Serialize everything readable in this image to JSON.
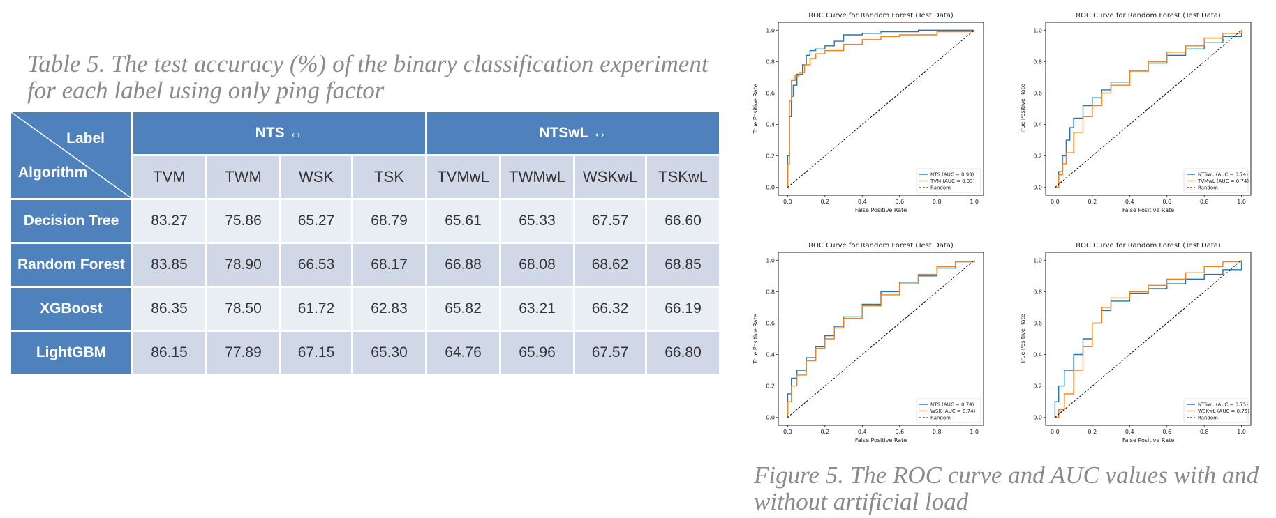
{
  "table": {
    "caption": "Table 5. The test accuracy (%) of the binary classification experiment for each label using only ping factor",
    "corner_label": "Label",
    "corner_algorithm": "Algorithm",
    "groups": [
      "NTS ↔",
      "NTSwL ↔"
    ],
    "columns": [
      "TVM",
      "TWM",
      "WSK",
      "TSK",
      "TVMwL",
      "TWMwL",
      "WSKwL",
      "TSKwL"
    ],
    "rows": [
      {
        "algorithm": "Decision Tree",
        "values": [
          "83.27",
          "75.86",
          "65.27",
          "68.79",
          "65.61",
          "65.33",
          "67.57",
          "66.60"
        ]
      },
      {
        "algorithm": "Random Forest",
        "values": [
          "83.85",
          "78.90",
          "66.53",
          "68.17",
          "66.88",
          "68.08",
          "68.62",
          "68.85"
        ]
      },
      {
        "algorithm": "XGBoost",
        "values": [
          "86.35",
          "78.50",
          "61.72",
          "62.83",
          "65.82",
          "63.21",
          "66.32",
          "66.19"
        ]
      },
      {
        "algorithm": "LightGBM",
        "values": [
          "86.15",
          "77.89",
          "67.15",
          "65.30",
          "64.76",
          "65.96",
          "67.57",
          "66.80"
        ]
      }
    ],
    "colors": {
      "header": "#4f81bd",
      "band_dark": "#d0d8e8",
      "band_light": "#e9edf4"
    }
  },
  "figure_caption": "Figure 5. The ROC curve and AUC values with and without artificial load",
  "chart_data": [
    {
      "type": "line",
      "title": "ROC Curve for Random Forest (Test Data)",
      "xlabel": "False Positive Rate",
      "ylabel": "True Positive Rate",
      "xlim": [
        0,
        1
      ],
      "ylim": [
        0,
        1
      ],
      "ticks": [
        "0.0",
        "0.2",
        "0.4",
        "0.6",
        "0.8",
        "1.0"
      ],
      "legend_position": "lower-right",
      "series": [
        {
          "name": "NTS (AUC = 0.93)",
          "color": "#1f77b4",
          "x": [
            0,
            0.0,
            0.01,
            0.02,
            0.03,
            0.05,
            0.08,
            0.1,
            0.12,
            0.15,
            0.2,
            0.25,
            0.3,
            0.4,
            0.5,
            0.7,
            1.0
          ],
          "y": [
            0,
            0.2,
            0.45,
            0.58,
            0.65,
            0.72,
            0.78,
            0.84,
            0.87,
            0.88,
            0.9,
            0.93,
            0.97,
            0.98,
            0.99,
            1.0,
            1.0
          ]
        },
        {
          "name": "TVM (AUC = 0.93)",
          "color": "#ff7f0e",
          "x": [
            0,
            0.0,
            0.01,
            0.02,
            0.04,
            0.06,
            0.09,
            0.12,
            0.15,
            0.2,
            0.3,
            0.4,
            0.5,
            0.6,
            0.8,
            1.0
          ],
          "y": [
            0,
            0.15,
            0.55,
            0.68,
            0.71,
            0.73,
            0.78,
            0.82,
            0.85,
            0.87,
            0.91,
            0.94,
            0.96,
            0.97,
            0.99,
            1.0
          ]
        },
        {
          "name": "Random",
          "color": "#000000",
          "dashed": true,
          "x": [
            0,
            1
          ],
          "y": [
            0,
            1
          ]
        }
      ]
    },
    {
      "type": "line",
      "title": "ROC Curve for Random Forest (Test Data)",
      "xlabel": "False Positive Rate",
      "ylabel": "True Positive Rate",
      "xlim": [
        0,
        1
      ],
      "ylim": [
        0,
        1
      ],
      "ticks": [
        "0.0",
        "0.2",
        "0.4",
        "0.6",
        "0.8",
        "1.0"
      ],
      "legend_position": "lower-right",
      "series": [
        {
          "name": "NTSwL (AUC = 0.74)",
          "color": "#1f77b4",
          "x": [
            0,
            0.02,
            0.04,
            0.06,
            0.08,
            0.1,
            0.15,
            0.2,
            0.25,
            0.3,
            0.4,
            0.5,
            0.6,
            0.7,
            0.8,
            0.9,
            1.0
          ],
          "y": [
            0,
            0.1,
            0.2,
            0.3,
            0.38,
            0.44,
            0.52,
            0.57,
            0.62,
            0.67,
            0.74,
            0.79,
            0.84,
            0.88,
            0.92,
            0.96,
            1.0
          ]
        },
        {
          "name": "TVMwL (AUC = 0.74)",
          "color": "#ff7f0e",
          "x": [
            0,
            0.02,
            0.04,
            0.06,
            0.1,
            0.15,
            0.2,
            0.25,
            0.3,
            0.4,
            0.5,
            0.6,
            0.7,
            0.8,
            0.9,
            1.0
          ],
          "y": [
            0,
            0.08,
            0.15,
            0.22,
            0.35,
            0.45,
            0.52,
            0.6,
            0.65,
            0.74,
            0.8,
            0.86,
            0.9,
            0.95,
            0.98,
            1.0
          ]
        },
        {
          "name": "Random",
          "color": "#000000",
          "dashed": true,
          "x": [
            0,
            1
          ],
          "y": [
            0,
            1
          ]
        }
      ]
    },
    {
      "type": "line",
      "title": "ROC Curve for Random Forest (Test Data)",
      "xlabel": "False Positive Rate",
      "ylabel": "True Positive Rate",
      "xlim": [
        0,
        1
      ],
      "ylim": [
        0,
        1
      ],
      "ticks": [
        "0.0",
        "0.2",
        "0.4",
        "0.6",
        "0.8",
        "1.0"
      ],
      "legend_position": "lower-right",
      "series": [
        {
          "name": "NTS (AUC = 0.74)",
          "color": "#1f77b4",
          "x": [
            0,
            0.0,
            0.02,
            0.05,
            0.1,
            0.15,
            0.2,
            0.25,
            0.3,
            0.4,
            0.5,
            0.6,
            0.7,
            0.8,
            0.9,
            1.0
          ],
          "y": [
            0,
            0.15,
            0.25,
            0.3,
            0.38,
            0.45,
            0.52,
            0.58,
            0.64,
            0.72,
            0.8,
            0.86,
            0.9,
            0.95,
            0.99,
            1.0
          ]
        },
        {
          "name": "WSK (AUC = 0.74)",
          "color": "#ff7f0e",
          "x": [
            0,
            0.0,
            0.02,
            0.05,
            0.1,
            0.15,
            0.2,
            0.25,
            0.3,
            0.4,
            0.5,
            0.6,
            0.7,
            0.8,
            0.9,
            1.0
          ],
          "y": [
            0,
            0.1,
            0.2,
            0.27,
            0.36,
            0.44,
            0.5,
            0.57,
            0.63,
            0.71,
            0.78,
            0.85,
            0.91,
            0.96,
            0.99,
            1.0
          ]
        },
        {
          "name": "Random",
          "color": "#000000",
          "dashed": true,
          "x": [
            0,
            1
          ],
          "y": [
            0,
            1
          ]
        }
      ]
    },
    {
      "type": "line",
      "title": "ROC Curve for Random Forest (Test Data)",
      "xlabel": "False Positive Rate",
      "ylabel": "True Positive Rate",
      "xlim": [
        0,
        1
      ],
      "ylim": [
        0,
        1
      ],
      "ticks": [
        "0.0",
        "0.2",
        "0.4",
        "0.6",
        "0.8",
        "1.0"
      ],
      "legend_position": "lower-right",
      "series": [
        {
          "name": "NTSwL (AUC = 0.75)",
          "color": "#1f77b4",
          "x": [
            0,
            0.0,
            0.02,
            0.05,
            0.1,
            0.15,
            0.2,
            0.25,
            0.3,
            0.4,
            0.5,
            0.6,
            0.7,
            0.8,
            0.9,
            1.0
          ],
          "y": [
            0,
            0.1,
            0.2,
            0.3,
            0.4,
            0.5,
            0.6,
            0.68,
            0.74,
            0.79,
            0.82,
            0.85,
            0.88,
            0.91,
            0.94,
            1.0
          ]
        },
        {
          "name": "WSKwL (AUC = 0.75)",
          "color": "#ff7f0e",
          "x": [
            0,
            0.02,
            0.05,
            0.1,
            0.15,
            0.2,
            0.25,
            0.3,
            0.4,
            0.5,
            0.6,
            0.7,
            0.8,
            0.9,
            1.0
          ],
          "y": [
            0,
            0.05,
            0.15,
            0.3,
            0.45,
            0.6,
            0.7,
            0.76,
            0.8,
            0.84,
            0.88,
            0.92,
            0.96,
            0.99,
            1.0
          ]
        },
        {
          "name": "Random",
          "color": "#000000",
          "dashed": true,
          "x": [
            0,
            1
          ],
          "y": [
            0,
            1
          ]
        }
      ]
    }
  ]
}
